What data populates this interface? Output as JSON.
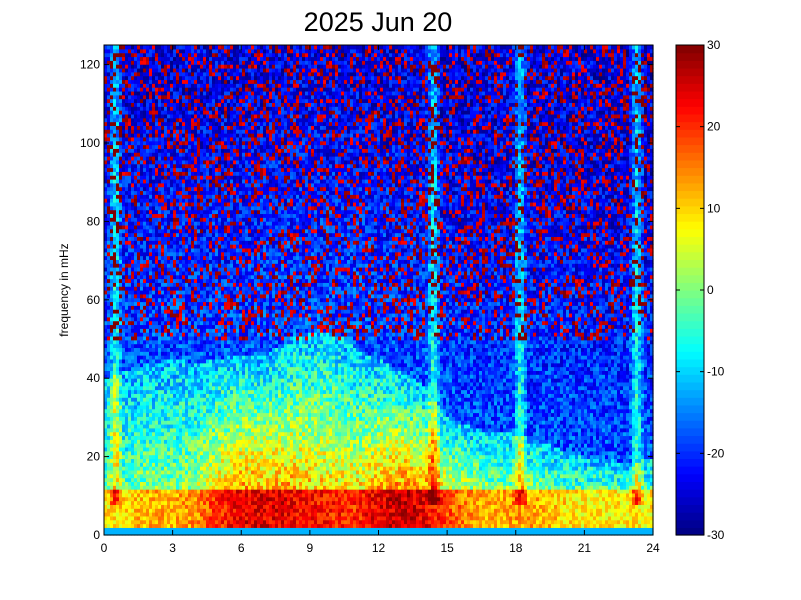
{
  "chart_data": {
    "type": "heatmap",
    "title": "2025 Jun 20",
    "xlabel": "",
    "ylabel": "frequency in mHz",
    "xlim": [
      0,
      24
    ],
    "ylim": [
      0,
      125
    ],
    "xticks": [
      0,
      3,
      6,
      9,
      12,
      15,
      18,
      21,
      24
    ],
    "xtick_labels": [
      "0",
      "3",
      "6",
      "9",
      "12",
      "15",
      "18",
      "21",
      "24"
    ],
    "yticks": [
      0,
      20,
      40,
      60,
      80,
      100,
      120
    ],
    "ytick_labels": [
      "0",
      "20",
      "40",
      "60",
      "80",
      "100",
      "120"
    ],
    "colorbar": {
      "colormap": "jet",
      "range": [
        -30,
        30
      ],
      "ticks": [
        -30,
        -20,
        -10,
        0,
        10,
        20,
        30
      ],
      "tick_labels": [
        "-30",
        "-20",
        "-10",
        "0",
        "10",
        "20",
        "30"
      ]
    },
    "grid": false,
    "hour_profile": {
      "hours": [
        0,
        1,
        2,
        3,
        4,
        5,
        6,
        7,
        8,
        9,
        10,
        11,
        12,
        13,
        14,
        15,
        16,
        17,
        18,
        19,
        20,
        21,
        22,
        23,
        24
      ],
      "low_freq_level_db": [
        8,
        10,
        12,
        12,
        14,
        20,
        24,
        24,
        24,
        22,
        21,
        20,
        24,
        26,
        24,
        18,
        14,
        12,
        13,
        12,
        10,
        8,
        8,
        8,
        8
      ],
      "bright_band_top_mhz": [
        40,
        42,
        44,
        45,
        44,
        45,
        46,
        46,
        50,
        52,
        52,
        48,
        45,
        42,
        38,
        30,
        28,
        26,
        26,
        24,
        22,
        20,
        20,
        18,
        20
      ]
    },
    "bright_vertical_streaks_hours": [
      0.5,
      14.4,
      18.2,
      23.3
    ]
  }
}
